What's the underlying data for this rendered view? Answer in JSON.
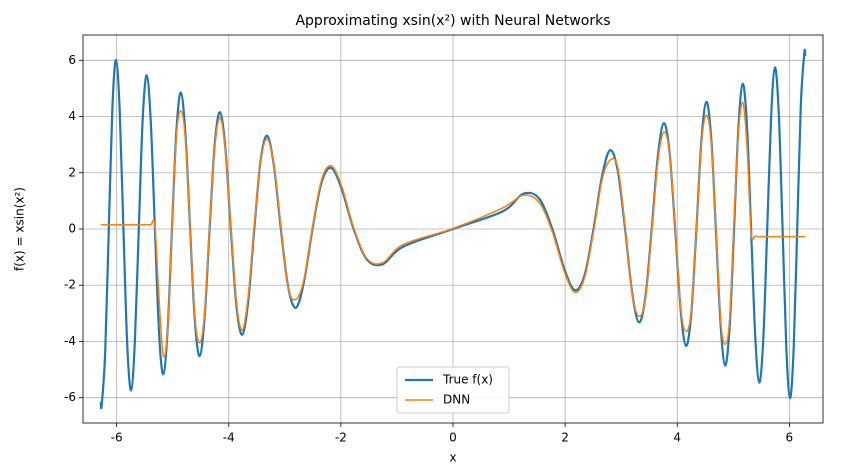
{
  "chart_data": {
    "type": "line",
    "title": "Approximating xsin(x²) with Neural Networks",
    "x_label": "x",
    "y_label": "f(x) = xsin(x²)",
    "x": [
      -6.283,
      -6.267,
      -6.204,
      -6.14,
      -6.076,
      -6.011,
      -5.945,
      -5.879,
      -5.811,
      -5.743,
      -5.675,
      -5.605,
      -5.535,
      -5.463,
      -5.391,
      -5.317,
      -5.243,
      -5.168,
      -5.091,
      -5.013,
      -4.934,
      -4.854,
      -4.773,
      -4.689,
      -4.605,
      -4.519,
      -4.431,
      -4.342,
      -4.25,
      -4.157,
      -4.061,
      -3.963,
      -3.863,
      -3.76,
      -3.654,
      -3.545,
      -3.432,
      -3.316,
      -3.195,
      -3.07,
      -2.939,
      -2.802,
      -2.659,
      -2.507,
      -2.345,
      -2.171,
      -1.982,
      -1.772,
      -1.535,
      -1.253,
      -0.886,
      0,
      0.886,
      1.253,
      1.535,
      1.772,
      1.982,
      2.171,
      2.345,
      2.507,
      2.659,
      2.802,
      2.939,
      3.07,
      3.195,
      3.316,
      3.432,
      3.545,
      3.654,
      3.76,
      3.863,
      3.963,
      4.061,
      4.157,
      4.25,
      4.342,
      4.431,
      4.519,
      4.605,
      4.689,
      4.773,
      4.854,
      4.934,
      5.013,
      5.091,
      5.168,
      5.243,
      5.317,
      5.391,
      5.463,
      5.535,
      5.605,
      5.675,
      5.743,
      5.811,
      5.879,
      5.945,
      6.011,
      6.076,
      6.14,
      6.204,
      6.267,
      6.283
    ],
    "series": [
      {
        "name": "True f(x)",
        "color": "#1f77b4",
        "width": 2.2,
        "values": [
          -6.145,
          -6.267,
          -4.386,
          0,
          4.296,
          6.011,
          4.203,
          0,
          -4.108,
          -5.743,
          -4.012,
          0,
          3.913,
          5.463,
          3.811,
          0,
          -3.707,
          -5.168,
          -3.599,
          0,
          3.488,
          4.854,
          3.375,
          0,
          -3.256,
          -4.519,
          -3.133,
          0,
          3.005,
          4.157,
          2.871,
          0,
          -2.731,
          -3.76,
          -2.584,
          0,
          2.427,
          3.316,
          2.259,
          0,
          -2.078,
          -2.802,
          -1.88,
          0,
          1.658,
          2.171,
          1.401,
          0,
          -1.085,
          -1.253,
          -0.626,
          0,
          0.626,
          1.253,
          1.085,
          0,
          -1.401,
          -2.171,
          -1.658,
          0,
          1.88,
          2.802,
          2.078,
          0,
          -2.259,
          -3.316,
          -2.427,
          0,
          2.584,
          3.76,
          2.731,
          0,
          -2.871,
          -4.157,
          -3.005,
          0,
          3.133,
          4.519,
          3.256,
          0,
          -3.375,
          -4.854,
          -3.488,
          0,
          3.599,
          5.168,
          3.707,
          0,
          -3.811,
          -5.463,
          -3.913,
          0,
          4.012,
          5.743,
          4.108,
          0,
          -4.203,
          -6.011,
          -4.296,
          0,
          4.386,
          6.267,
          6.145
        ]
      },
      {
        "name": "DNN",
        "color": "#ff7f0e",
        "width": 1.5,
        "values": [
          0.15,
          0.15,
          0.15,
          0.15,
          0.15,
          0.15,
          0.15,
          0.15,
          0.15,
          0.15,
          0.15,
          0.15,
          0.15,
          0.15,
          0.15,
          0.1,
          -2.5,
          -4.5,
          -3.6,
          0,
          3.3,
          4.2,
          3.2,
          0,
          -3.1,
          -4.05,
          -3.0,
          0.1,
          2.9,
          3.95,
          2.8,
          0.1,
          -2.6,
          -3.6,
          -2.4,
          0.1,
          2.4,
          3.2,
          2.3,
          0.1,
          -2.1,
          -2.5,
          -1.8,
          0.05,
          1.75,
          2.25,
          1.5,
          0.05,
          -1.05,
          -1.2,
          -0.55,
          0.02,
          0.75,
          1.2,
          0.95,
          -0.1,
          -1.5,
          -2.25,
          -1.75,
          -0.1,
          1.75,
          2.45,
          2.2,
          0.1,
          -2.3,
          -3.1,
          -2.5,
          -0.1,
          2.4,
          3.45,
          2.7,
          0.1,
          -2.8,
          -3.65,
          -2.9,
          0,
          3.0,
          4.05,
          3.1,
          0.1,
          -3.2,
          -4.1,
          -3.2,
          0.3,
          3.4,
          4.5,
          3.0,
          -0.1,
          -0.25,
          -0.27,
          -0.27,
          -0.27,
          -0.27,
          -0.27,
          -0.27,
          -0.27,
          -0.27,
          -0.27,
          -0.27,
          -0.27,
          -0.27,
          -0.27,
          -0.27
        ]
      }
    ],
    "xlim": [
      -6.6,
      6.6
    ],
    "ylim": [
      -6.9,
      6.9
    ],
    "xticks": [
      -6,
      -4,
      -2,
      0,
      2,
      4,
      6
    ],
    "yticks": [
      -6,
      -4,
      -2,
      0,
      2,
      4,
      6
    ],
    "grid": true,
    "legend": "lower center"
  }
}
